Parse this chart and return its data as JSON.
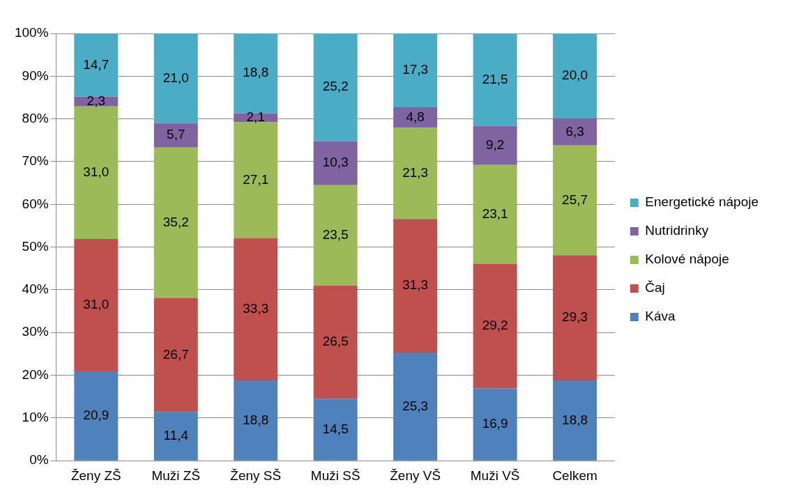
{
  "chart_data": {
    "type": "bar",
    "stacked": true,
    "categories": [
      "Ženy ZŠ",
      "Muži ZŠ",
      "Ženy SŠ",
      "Muži SŠ",
      "Ženy VŠ",
      "Muži VŠ",
      "Celkem"
    ],
    "series": [
      {
        "name": "Káva",
        "color": "#4f81bd",
        "values": [
          20.9,
          11.4,
          18.8,
          14.5,
          25.3,
          16.9,
          18.8
        ],
        "value_labels": [
          "20,9",
          "11,4",
          "18,8",
          "14,5",
          "25,3",
          "16,9",
          "18,8"
        ]
      },
      {
        "name": "Čaj",
        "color": "#c0504d",
        "values": [
          31.0,
          26.7,
          33.3,
          26.5,
          31.3,
          29.2,
          29.3
        ],
        "value_labels": [
          "31,0",
          "26,7",
          "33,3",
          "26,5",
          "31,3",
          "29,2",
          "29,3"
        ]
      },
      {
        "name": "Kolové nápoje",
        "color": "#9bbb59",
        "values": [
          31.0,
          35.2,
          27.1,
          23.5,
          21.3,
          23.1,
          25.7
        ],
        "value_labels": [
          "31,0",
          "35,2",
          "27,1",
          "23,5",
          "21,3",
          "23,1",
          "25,7"
        ]
      },
      {
        "name": "Nutridrinky",
        "color": "#8064a2",
        "values": [
          2.3,
          5.7,
          2.1,
          10.3,
          4.8,
          9.2,
          6.3
        ],
        "value_labels": [
          "2,3",
          "5,7",
          "2,1",
          "10,3",
          "4,8",
          "9,2",
          "6,3"
        ]
      },
      {
        "name": "Energetické nápoje",
        "color": "#4bacc6",
        "values": [
          14.7,
          21.0,
          18.8,
          25.2,
          17.3,
          21.5,
          20.0
        ],
        "value_labels": [
          "14,7",
          "21,0",
          "18,8",
          "25,2",
          "17,3",
          "21,5",
          "20,0"
        ]
      }
    ],
    "ylim": [
      0,
      100
    ],
    "yticks": [
      {
        "value": 0,
        "label": "0%"
      },
      {
        "value": 10,
        "label": "10%"
      },
      {
        "value": 20,
        "label": "20%"
      },
      {
        "value": 30,
        "label": "30%"
      },
      {
        "value": 40,
        "label": "40%"
      },
      {
        "value": 50,
        "label": "50%"
      },
      {
        "value": 60,
        "label": "60%"
      },
      {
        "value": 70,
        "label": "70%"
      },
      {
        "value": 80,
        "label": "80%"
      },
      {
        "value": 90,
        "label": "90%"
      },
      {
        "value": 100,
        "label": "100%"
      }
    ],
    "grid": "y",
    "legend": "right"
  }
}
